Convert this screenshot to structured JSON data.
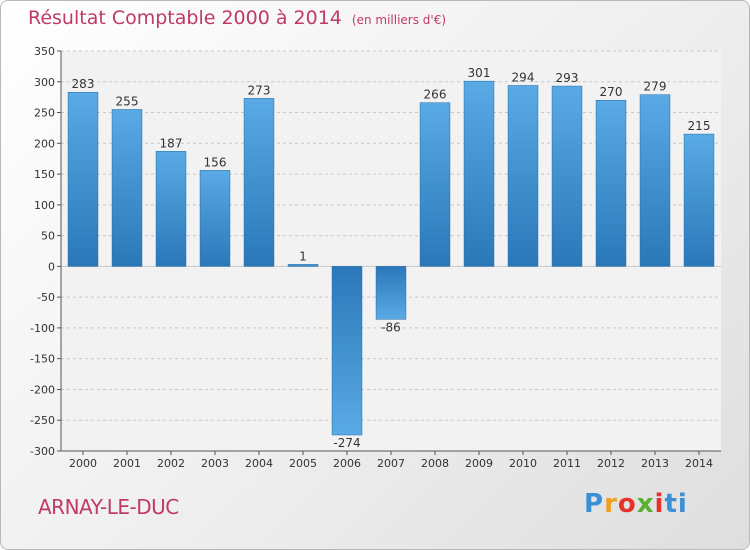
{
  "header": {
    "title": "Résultat Comptable 2000 à 2014",
    "subtitle": "(en milliers d'€)"
  },
  "footer": {
    "city": "ARNAY-LE-DUC",
    "logo_letters": [
      "P",
      "r",
      "o",
      "x",
      "i",
      "ti"
    ]
  },
  "colors": {
    "accent": "#c0396b",
    "bar_dark": "#2a78b8",
    "bar_light": "#5aaae6",
    "grid": "#c8c8c8"
  },
  "chart_data": {
    "type": "bar",
    "title": "Résultat Comptable 2000 à 2014",
    "subtitle": "(en milliers d'€)",
    "xlabel": "",
    "ylabel": "",
    "categories": [
      "2000",
      "2001",
      "2002",
      "2003",
      "2004",
      "2005",
      "2006",
      "2007",
      "2008",
      "2009",
      "2010",
      "2011",
      "2012",
      "2013",
      "2014"
    ],
    "values": [
      283,
      255,
      187,
      156,
      273,
      1,
      -274,
      -86,
      266,
      301,
      294,
      293,
      270,
      279,
      215
    ],
    "ylim": [
      -300,
      350
    ],
    "yticks": [
      350,
      300,
      250,
      200,
      150,
      100,
      50,
      0,
      -50,
      -100,
      -150,
      -200,
      -250,
      -300
    ],
    "grid": true
  }
}
